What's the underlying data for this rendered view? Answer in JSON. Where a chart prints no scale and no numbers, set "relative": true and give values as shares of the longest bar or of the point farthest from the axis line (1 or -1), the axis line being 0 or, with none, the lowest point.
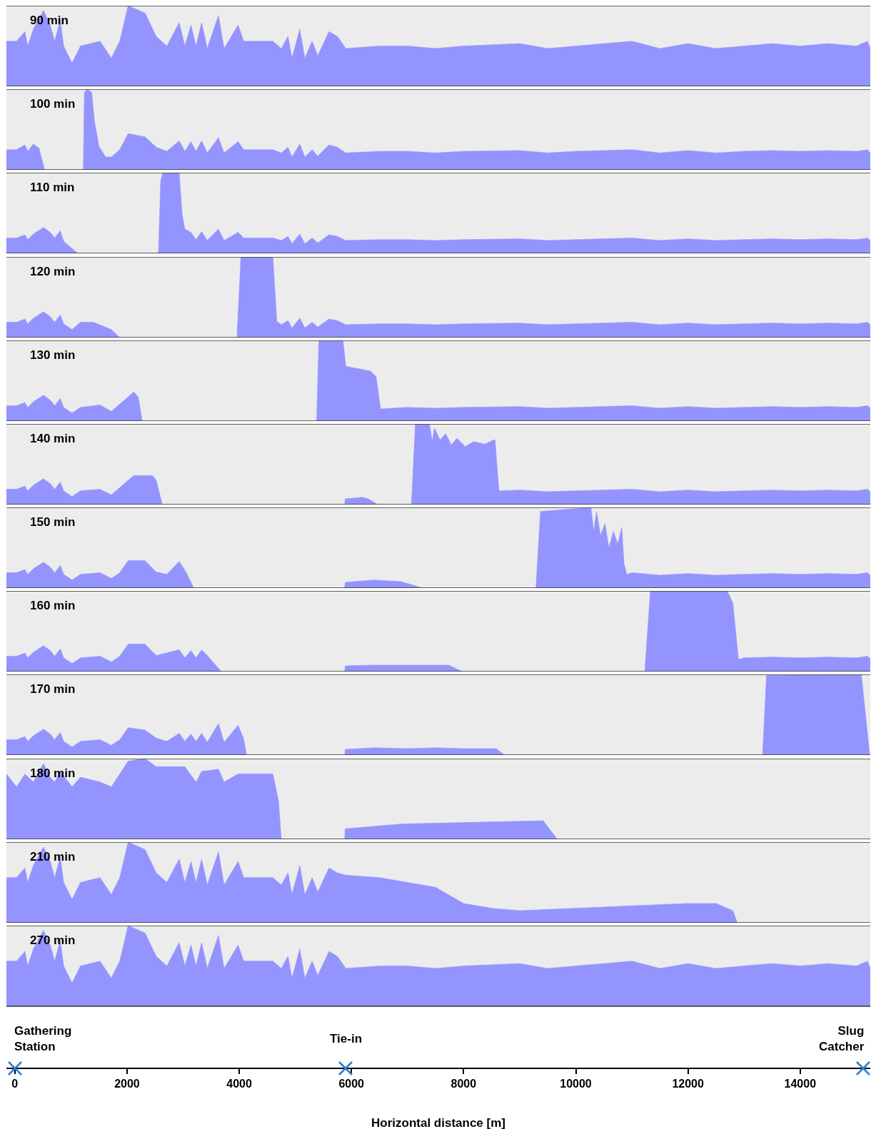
{
  "chart_data": [
    {
      "type": "area",
      "relative": true,
      "xlim": [
        -150,
        15250
      ],
      "tick_labels": false,
      "series": [
        {
          "name": "90 min",
          "color": "#9494ff",
          "x": [
            -150,
            30,
            180,
            230,
            330,
            510,
            630,
            710,
            810,
            870,
            1020,
            1170,
            1520,
            1720,
            1870,
            2020,
            2320,
            2520,
            2710,
            2930,
            3030,
            3140,
            3230,
            3330,
            3430,
            3630,
            3730,
            3980,
            4080,
            4600,
            4750,
            4870,
            4940,
            5080,
            5170,
            5300,
            5400,
            5600,
            5750,
            5900,
            6500,
            7000,
            7500,
            8000,
            9000,
            9500,
            10000,
            11000,
            11500,
            12000,
            12500,
            13000,
            13500,
            14000,
            14500,
            15000,
            15200,
            15250
          ],
          "values": [
            0.56,
            0.56,
            0.68,
            0.5,
            0.71,
            0.94,
            0.76,
            0.56,
            0.82,
            0.5,
            0.29,
            0.5,
            0.56,
            0.35,
            0.56,
            1,
            0.91,
            0.62,
            0.5,
            0.79,
            0.5,
            0.76,
            0.5,
            0.79,
            0.47,
            0.88,
            0.47,
            0.76,
            0.56,
            0.56,
            0.47,
            0.62,
            0.35,
            0.71,
            0.35,
            0.56,
            0.38,
            0.68,
            0.62,
            0.47,
            0.5,
            0.5,
            0.47,
            0.5,
            0.53,
            0.47,
            0.5,
            0.56,
            0.47,
            0.53,
            0.47,
            0.5,
            0.53,
            0.5,
            0.53,
            0.5,
            0.56,
            0.47
          ]
        }
      ]
    },
    {
      "type": "area",
      "relative": true,
      "xlim": [
        -150,
        15250
      ],
      "tick_labels": false,
      "series": [
        {
          "name": "100 min",
          "color": "#9494ff",
          "x": [
            -150,
            30,
            180,
            230,
            330,
            430,
            530,
            1220,
            1240,
            1290,
            1370,
            1420,
            1500,
            1620,
            1720,
            1870,
            2020,
            2320,
            2520,
            2710,
            2930,
            3030,
            3140,
            3230,
            3330,
            3430,
            3630,
            3730,
            3980,
            4080,
            4600,
            4750,
            4870,
            4940,
            5080,
            5170,
            5300,
            5400,
            5600,
            5750,
            5900,
            6500,
            7000,
            7500,
            8000,
            9000,
            9500,
            10000,
            11000,
            11500,
            12000,
            12500,
            13000,
            13500,
            14000,
            14500,
            15000,
            15200,
            15250
          ],
          "values": [
            0.25,
            0.25,
            0.31,
            0.23,
            0.32,
            0.27,
            0,
            0,
            0.96,
            1,
            0.96,
            0.6,
            0.29,
            0.16,
            0.16,
            0.25,
            0.45,
            0.41,
            0.28,
            0.23,
            0.36,
            0.23,
            0.35,
            0.23,
            0.36,
            0.21,
            0.4,
            0.21,
            0.35,
            0.25,
            0.25,
            0.21,
            0.28,
            0.16,
            0.32,
            0.16,
            0.25,
            0.17,
            0.31,
            0.28,
            0.21,
            0.23,
            0.23,
            0.21,
            0.23,
            0.24,
            0.21,
            0.23,
            0.25,
            0.21,
            0.24,
            0.21,
            0.23,
            0.24,
            0.23,
            0.24,
            0.23,
            0.25,
            0.21
          ]
        }
      ]
    },
    {
      "type": "area",
      "relative": true,
      "xlim": [
        -150,
        15250
      ],
      "tick_labels": false,
      "series": [
        {
          "name": "110 min",
          "color": "#9494ff",
          "x": [
            -150,
            30,
            180,
            230,
            330,
            510,
            630,
            710,
            810,
            870,
            1120,
            2560,
            2600,
            2640,
            2930,
            2980,
            3030,
            3140,
            3230,
            3330,
            3430,
            3630,
            3730,
            3980,
            4080,
            4600,
            4750,
            4870,
            4940,
            5080,
            5170,
            5300,
            5400,
            5600,
            5750,
            5900,
            6500,
            7000,
            7500,
            8000,
            9000,
            9500,
            10000,
            11000,
            11500,
            12000,
            12500,
            13000,
            13500,
            14000,
            14500,
            15000,
            15200,
            15250
          ],
          "values": [
            0.19,
            0.19,
            0.23,
            0.17,
            0.24,
            0.32,
            0.26,
            0.19,
            0.28,
            0.15,
            0,
            0,
            0.9,
            1,
            1,
            0.5,
            0.3,
            0.26,
            0.17,
            0.27,
            0.16,
            0.3,
            0.16,
            0.26,
            0.19,
            0.19,
            0.16,
            0.21,
            0.12,
            0.24,
            0.12,
            0.19,
            0.13,
            0.23,
            0.21,
            0.16,
            0.17,
            0.17,
            0.16,
            0.17,
            0.18,
            0.16,
            0.17,
            0.19,
            0.16,
            0.18,
            0.16,
            0.17,
            0.18,
            0.17,
            0.18,
            0.17,
            0.19,
            0.16
          ]
        }
      ]
    },
    {
      "type": "area",
      "relative": true,
      "xlim": [
        -150,
        15250
      ],
      "tick_labels": false,
      "series": [
        {
          "name": "120 min",
          "color": "#9494ff",
          "x": [
            -150,
            30,
            180,
            230,
            330,
            510,
            630,
            710,
            810,
            870,
            1020,
            1170,
            1400,
            1720,
            1870,
            3960,
            4030,
            4600,
            4670,
            4750,
            4870,
            4940,
            5080,
            5170,
            5300,
            5400,
            5600,
            5750,
            5900,
            6500,
            7000,
            7500,
            8000,
            9000,
            9500,
            10000,
            11000,
            11500,
            12000,
            12500,
            13000,
            13500,
            14000,
            14500,
            15000,
            15200,
            15250
          ],
          "values": [
            0.19,
            0.19,
            0.23,
            0.17,
            0.24,
            0.32,
            0.26,
            0.19,
            0.28,
            0.17,
            0.1,
            0.19,
            0.19,
            0.1,
            0,
            0,
            1,
            1,
            0.2,
            0.16,
            0.21,
            0.12,
            0.24,
            0.12,
            0.19,
            0.13,
            0.23,
            0.21,
            0.16,
            0.17,
            0.17,
            0.16,
            0.17,
            0.18,
            0.16,
            0.17,
            0.19,
            0.16,
            0.18,
            0.16,
            0.17,
            0.18,
            0.17,
            0.18,
            0.17,
            0.19,
            0.16
          ]
        }
      ]
    },
    {
      "type": "area",
      "relative": true,
      "xlim": [
        -150,
        15250
      ],
      "tick_labels": false,
      "series": [
        {
          "name": "130 min",
          "color": "#9494ff",
          "x": [
            -150,
            30,
            180,
            230,
            330,
            510,
            630,
            710,
            810,
            870,
            1020,
            1170,
            1520,
            1720,
            2020,
            2120,
            2200,
            2270,
            5380,
            5420,
            5850,
            5900,
            6340,
            6440,
            6520,
            7000,
            7500,
            8000,
            9000,
            9500,
            10000,
            11000,
            11500,
            12000,
            12500,
            13000,
            13500,
            14000,
            14500,
            15000,
            15200,
            15250
          ],
          "values": [
            0.19,
            0.19,
            0.23,
            0.17,
            0.24,
            0.32,
            0.26,
            0.19,
            0.28,
            0.17,
            0.1,
            0.17,
            0.2,
            0.12,
            0.3,
            0.36,
            0.3,
            0,
            0,
            1,
            1,
            0.68,
            0.62,
            0.55,
            0.15,
            0.17,
            0.16,
            0.17,
            0.18,
            0.16,
            0.17,
            0.19,
            0.16,
            0.18,
            0.16,
            0.17,
            0.18,
            0.17,
            0.18,
            0.17,
            0.19,
            0.16
          ]
        }
      ]
    },
    {
      "type": "area",
      "relative": true,
      "xlim": [
        -150,
        15250
      ],
      "tick_labels": false,
      "series": [
        {
          "name": "140 min",
          "color": "#9494ff",
          "x": [
            -150,
            30,
            180,
            230,
            330,
            510,
            630,
            710,
            810,
            870,
            1020,
            1170,
            1520,
            1720,
            2020,
            2120,
            2450,
            2520,
            2630,
            5880,
            5890,
            6190,
            6300,
            6470,
            7070,
            7140,
            7390,
            7440,
            7480,
            7580,
            7680,
            7780,
            7880,
            8030,
            8180,
            8380,
            8530,
            8560,
            8630,
            9000,
            9500,
            10000,
            11000,
            11500,
            12000,
            12500,
            13000,
            13500,
            14000,
            14500,
            15000,
            15200,
            15250
          ],
          "values": [
            0.19,
            0.19,
            0.23,
            0.17,
            0.24,
            0.32,
            0.26,
            0.19,
            0.28,
            0.17,
            0.1,
            0.17,
            0.19,
            0.12,
            0.3,
            0.36,
            0.36,
            0.3,
            0,
            0,
            0.07,
            0.09,
            0.07,
            0,
            0,
            1,
            1,
            0.78,
            0.95,
            0.8,
            0.88,
            0.74,
            0.82,
            0.72,
            0.78,
            0.75,
            0.8,
            0.8,
            0.17,
            0.18,
            0.16,
            0.17,
            0.19,
            0.16,
            0.18,
            0.16,
            0.17,
            0.18,
            0.17,
            0.18,
            0.17,
            0.19,
            0.16
          ]
        }
      ]
    },
    {
      "type": "area",
      "relative": true,
      "xlim": [
        -150,
        15250
      ],
      "tick_labels": false,
      "series": [
        {
          "name": "150 min",
          "color": "#9494ff",
          "x": [
            -150,
            30,
            180,
            230,
            330,
            510,
            630,
            710,
            810,
            870,
            1020,
            1170,
            1520,
            1720,
            1870,
            2020,
            2320,
            2520,
            2710,
            2930,
            3050,
            3190,
            5880,
            5890,
            6390,
            6890,
            7270,
            9290,
            9370,
            10270,
            10320,
            10370,
            10440,
            10520,
            10590,
            10670,
            10750,
            10820,
            10860,
            10910,
            11000,
            11500,
            12000,
            12500,
            13000,
            13500,
            14000,
            14500,
            15000,
            15200,
            15250
          ],
          "values": [
            0.19,
            0.19,
            0.23,
            0.17,
            0.24,
            0.32,
            0.26,
            0.19,
            0.28,
            0.17,
            0.1,
            0.17,
            0.19,
            0.12,
            0.19,
            0.34,
            0.34,
            0.2,
            0.17,
            0.33,
            0.2,
            0,
            0,
            0.07,
            0.1,
            0.08,
            0,
            0,
            0.95,
            1,
            0.7,
            0.95,
            0.65,
            0.8,
            0.5,
            0.7,
            0.55,
            0.75,
            0.3,
            0.17,
            0.19,
            0.16,
            0.18,
            0.16,
            0.17,
            0.18,
            0.17,
            0.18,
            0.17,
            0.19,
            0.16
          ]
        }
      ]
    },
    {
      "type": "area",
      "relative": true,
      "xlim": [
        -150,
        15250
      ],
      "tick_labels": false,
      "series": [
        {
          "name": "160 min",
          "color": "#9494ff",
          "x": [
            -150,
            30,
            180,
            230,
            330,
            510,
            630,
            710,
            810,
            870,
            1020,
            1170,
            1520,
            1720,
            1870,
            2020,
            2320,
            2520,
            2930,
            3030,
            3140,
            3230,
            3330,
            3430,
            3680,
            5880,
            5890,
            6390,
            7730,
            7980,
            11230,
            11330,
            12700,
            12800,
            12900,
            13000,
            13500,
            14000,
            14500,
            15000,
            15200,
            15250
          ],
          "values": [
            0.19,
            0.19,
            0.23,
            0.17,
            0.24,
            0.32,
            0.26,
            0.19,
            0.28,
            0.17,
            0.1,
            0.17,
            0.19,
            0.12,
            0.19,
            0.34,
            0.34,
            0.2,
            0.27,
            0.17,
            0.26,
            0.17,
            0.27,
            0.2,
            0,
            0,
            0.07,
            0.08,
            0.08,
            0,
            0,
            1,
            1,
            0.85,
            0.15,
            0.17,
            0.18,
            0.17,
            0.18,
            0.17,
            0.19,
            0.16
          ]
        }
      ]
    },
    {
      "type": "area",
      "relative": true,
      "xlim": [
        -150,
        15250
      ],
      "tick_labels": false,
      "series": [
        {
          "name": "170 min",
          "color": "#9494ff",
          "x": [
            -150,
            30,
            180,
            230,
            330,
            510,
            630,
            710,
            810,
            870,
            1020,
            1170,
            1520,
            1720,
            1870,
            2020,
            2320,
            2520,
            2710,
            2930,
            3030,
            3140,
            3230,
            3330,
            3430,
            3630,
            3730,
            3980,
            4080,
            4130,
            5880,
            5890,
            6400,
            7000,
            7500,
            8000,
            8580,
            8730,
            13330,
            13400,
            15090,
            15240
          ],
          "values": [
            0.19,
            0.19,
            0.23,
            0.17,
            0.24,
            0.32,
            0.26,
            0.19,
            0.28,
            0.17,
            0.1,
            0.17,
            0.19,
            0.12,
            0.19,
            0.34,
            0.31,
            0.21,
            0.17,
            0.27,
            0.17,
            0.26,
            0.17,
            0.27,
            0.16,
            0.39,
            0.16,
            0.37,
            0.2,
            0,
            0,
            0.07,
            0.09,
            0.08,
            0.09,
            0.08,
            0.08,
            0,
            0,
            0.99,
            1,
            0
          ]
        }
      ]
    },
    {
      "type": "area",
      "relative": true,
      "xlim": [
        -150,
        15250
      ],
      "tick_labels": false,
      "series": [
        {
          "name": "180 min",
          "color": "#9494ff",
          "x": [
            -150,
            30,
            180,
            330,
            510,
            630,
            710,
            810,
            1020,
            1170,
            1520,
            1720,
            2020,
            2320,
            2520,
            3030,
            3230,
            3330,
            3630,
            3730,
            3980,
            4600,
            4700,
            4750,
            5880,
            5890,
            6900,
            9420,
            9670
          ],
          "values": [
            0.81,
            0.65,
            0.81,
            0.71,
            0.94,
            0.77,
            0.71,
            0.84,
            0.65,
            0.77,
            0.71,
            0.65,
            0.97,
            1,
            0.9,
            0.9,
            0.71,
            0.84,
            0.87,
            0.71,
            0.81,
            0.81,
            0.48,
            0,
            0,
            0.13,
            0.19,
            0.23,
            0
          ]
        }
      ]
    },
    {
      "type": "area",
      "relative": true,
      "xlim": [
        -150,
        15250
      ],
      "tick_labels": false,
      "series": [
        {
          "name": "210 min",
          "color": "#9494ff",
          "x": [
            -150,
            30,
            180,
            230,
            330,
            510,
            630,
            710,
            810,
            870,
            1020,
            1170,
            1520,
            1720,
            1870,
            2020,
            2320,
            2520,
            2710,
            2930,
            3030,
            3140,
            3230,
            3330,
            3430,
            3630,
            3730,
            3980,
            4080,
            4600,
            4750,
            4870,
            4940,
            5080,
            5170,
            5300,
            5400,
            5600,
            5750,
            5900,
            6500,
            7000,
            7500,
            8000,
            8500,
            9000,
            10000,
            11000,
            12000,
            12500,
            12800,
            12880
          ],
          "values": [
            0.56,
            0.56,
            0.68,
            0.5,
            0.71,
            0.94,
            0.76,
            0.56,
            0.82,
            0.5,
            0.29,
            0.5,
            0.56,
            0.35,
            0.56,
            1,
            0.91,
            0.62,
            0.5,
            0.79,
            0.5,
            0.76,
            0.5,
            0.79,
            0.47,
            0.88,
            0.47,
            0.76,
            0.56,
            0.56,
            0.47,
            0.62,
            0.35,
            0.71,
            0.35,
            0.56,
            0.38,
            0.68,
            0.62,
            0.59,
            0.56,
            0.5,
            0.44,
            0.24,
            0.18,
            0.15,
            0.18,
            0.21,
            0.24,
            0.24,
            0.15,
            0
          ]
        }
      ]
    },
    {
      "type": "area",
      "relative": true,
      "xlim": [
        -150,
        15250
      ],
      "xticks": [
        0,
        2000,
        4000,
        6000,
        8000,
        10000,
        12000,
        14000
      ],
      "xlabel": "Horizontal distance [m]",
      "tick_labels": "x",
      "annotations": [
        "Gathering Station",
        "Tie-in",
        "Slug Catcher"
      ],
      "series": [
        {
          "name": "270 min",
          "color": "#9494ff",
          "x": [
            -150,
            30,
            180,
            230,
            330,
            510,
            630,
            710,
            810,
            870,
            1020,
            1170,
            1520,
            1720,
            1870,
            2020,
            2320,
            2520,
            2710,
            2930,
            3030,
            3140,
            3230,
            3330,
            3430,
            3630,
            3730,
            3980,
            4080,
            4600,
            4750,
            4870,
            4940,
            5080,
            5170,
            5300,
            5400,
            5600,
            5750,
            5900,
            6500,
            7000,
            7500,
            8000,
            9000,
            9500,
            10000,
            11000,
            11500,
            12000,
            12500,
            13000,
            13500,
            14000,
            14500,
            15000,
            15200,
            15250
          ],
          "values": [
            0.56,
            0.56,
            0.68,
            0.5,
            0.71,
            0.94,
            0.76,
            0.56,
            0.82,
            0.5,
            0.29,
            0.5,
            0.56,
            0.35,
            0.56,
            1,
            0.91,
            0.62,
            0.5,
            0.79,
            0.5,
            0.76,
            0.5,
            0.79,
            0.47,
            0.88,
            0.47,
            0.76,
            0.56,
            0.56,
            0.47,
            0.62,
            0.35,
            0.71,
            0.35,
            0.56,
            0.38,
            0.68,
            0.62,
            0.47,
            0.5,
            0.5,
            0.47,
            0.5,
            0.53,
            0.47,
            0.5,
            0.56,
            0.47,
            0.53,
            0.47,
            0.5,
            0.53,
            0.5,
            0.53,
            0.5,
            0.56,
            0.47
          ]
        }
      ]
    }
  ]
}
